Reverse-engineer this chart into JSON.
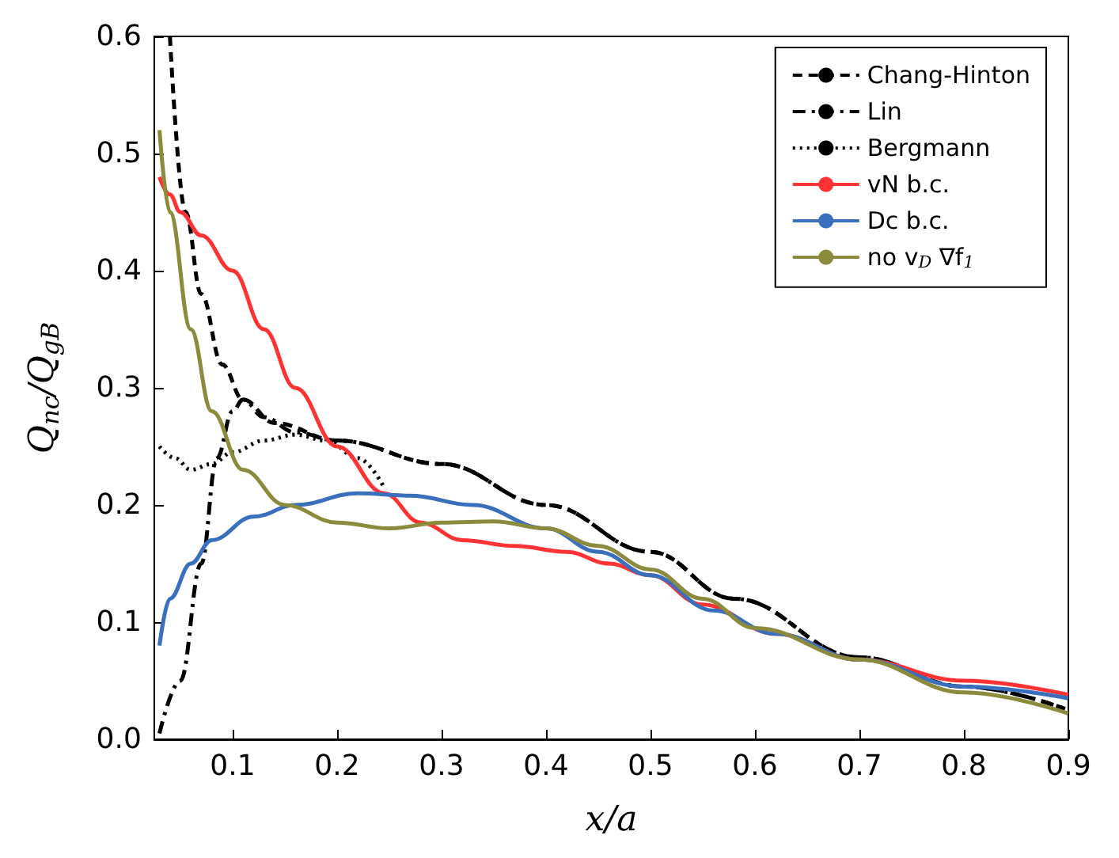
{
  "chart_data": {
    "type": "line",
    "xlabel": "x/a",
    "ylabel": "Q$_{nc}$/Q$_{gB}$",
    "xlim": [
      0.025,
      0.9
    ],
    "ylim": [
      0,
      0.6
    ],
    "xticks": [
      0.1,
      0.2,
      0.3,
      0.4,
      0.5,
      0.6,
      0.7,
      0.8,
      0.9
    ],
    "yticks": [
      {
        "value": 0,
        "label": "0.0"
      },
      0.1,
      0.2,
      0.3,
      0.4,
      0.5,
      0.6
    ],
    "grid": false,
    "legend": "top right",
    "marker": "none",
    "series": [
      {
        "name": "Chang-Hinton",
        "color": "#000000",
        "line_style": "dashed",
        "x": [
          0.04,
          0.055,
          0.07,
          0.09,
          0.11,
          0.14,
          0.2,
          0.3,
          0.4,
          0.5,
          0.58,
          0.7,
          0.8,
          0.9
        ],
        "values": [
          0.6,
          0.45,
          0.38,
          0.32,
          0.29,
          0.27,
          0.255,
          0.235,
          0.2,
          0.16,
          0.12,
          0.07,
          0.045,
          0.025
        ]
      },
      {
        "name": "Lin",
        "color": "#000000",
        "line_style": "dashdot",
        "x": [
          0.03,
          0.05,
          0.07,
          0.085,
          0.1,
          0.11,
          0.13,
          0.16,
          0.2,
          0.3,
          0.4,
          0.5,
          0.58,
          0.7,
          0.8,
          0.9
        ],
        "values": [
          0.005,
          0.05,
          0.15,
          0.24,
          0.28,
          0.29,
          0.275,
          0.262,
          0.255,
          0.235,
          0.2,
          0.16,
          0.12,
          0.07,
          0.045,
          0.025
        ]
      },
      {
        "name": "Bergmann",
        "color": "#000000",
        "line_style": "dotted",
        "x": [
          0.03,
          0.045,
          0.06,
          0.08,
          0.1,
          0.13,
          0.16,
          0.19,
          0.22,
          0.245
        ],
        "values": [
          0.25,
          0.24,
          0.23,
          0.235,
          0.245,
          0.255,
          0.26,
          0.255,
          0.24,
          0.215
        ]
      },
      {
        "name": "vN b.c.",
        "color": "#ff3333",
        "line_style": "solid",
        "x": [
          0.03,
          0.04,
          0.05,
          0.07,
          0.1,
          0.13,
          0.16,
          0.2,
          0.245,
          0.28,
          0.32,
          0.37,
          0.42,
          0.46,
          0.5,
          0.55,
          0.62,
          0.7,
          0.8,
          0.9
        ],
        "values": [
          0.48,
          0.465,
          0.45,
          0.43,
          0.4,
          0.35,
          0.3,
          0.25,
          0.21,
          0.185,
          0.17,
          0.165,
          0.16,
          0.15,
          0.14,
          0.115,
          0.09,
          0.068,
          0.05,
          0.038
        ]
      },
      {
        "name": "Dc b.c.",
        "color": "#3a6fbd",
        "line_style": "solid",
        "x": [
          0.03,
          0.04,
          0.06,
          0.08,
          0.12,
          0.16,
          0.22,
          0.27,
          0.33,
          0.4,
          0.45,
          0.5,
          0.56,
          0.62,
          0.7,
          0.8,
          0.9
        ],
        "values": [
          0.08,
          0.12,
          0.15,
          0.17,
          0.19,
          0.2,
          0.21,
          0.208,
          0.2,
          0.18,
          0.16,
          0.14,
          0.11,
          0.09,
          0.068,
          0.045,
          0.035
        ]
      },
      {
        "name": "no v$_{D}$ ∇f$_{1}$",
        "color": "#8c8a3c",
        "line_style": "solid",
        "x": [
          0.03,
          0.04,
          0.06,
          0.08,
          0.11,
          0.15,
          0.2,
          0.25,
          0.3,
          0.35,
          0.4,
          0.45,
          0.5,
          0.55,
          0.6,
          0.7,
          0.8,
          0.9
        ],
        "values": [
          0.52,
          0.45,
          0.35,
          0.28,
          0.23,
          0.2,
          0.185,
          0.18,
          0.185,
          0.186,
          0.18,
          0.165,
          0.145,
          0.12,
          0.095,
          0.068,
          0.04,
          0.022
        ]
      }
    ]
  }
}
